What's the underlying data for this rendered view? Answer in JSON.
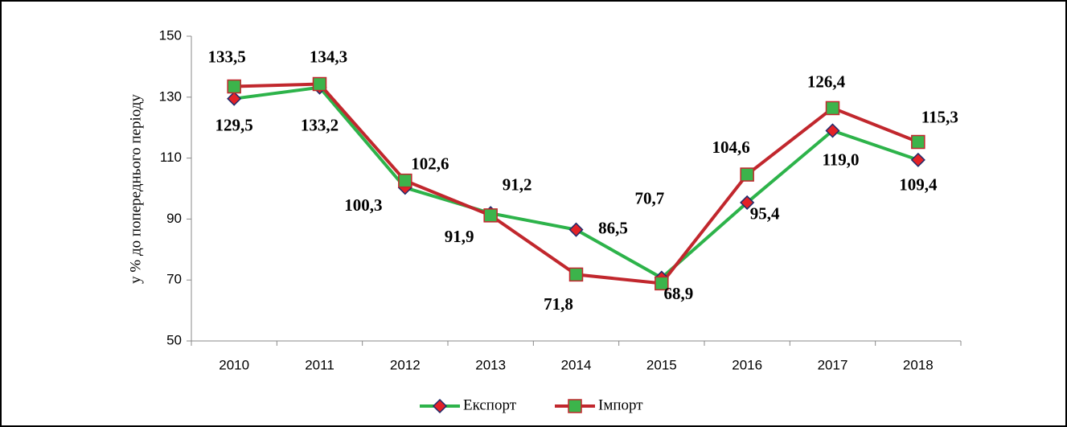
{
  "chart_data": {
    "type": "line",
    "y_label": "у % до попереднього періоду",
    "categories": [
      "2010",
      "2011",
      "2012",
      "2013",
      "2014",
      "2015",
      "2016",
      "2017",
      "2018"
    ],
    "series": [
      {
        "name": "Експорт",
        "color": "#2db34a",
        "marker_color": "#e32227",
        "values": [
          129.5,
          133.2,
          100.3,
          91.9,
          86.5,
          70.7,
          95.4,
          119.0,
          109.4
        ],
        "value_labels": [
          "129,5",
          "133,2",
          "100,3",
          "91,9",
          "86,5",
          "70,7",
          "95,4",
          "119,0",
          "109,4"
        ]
      },
      {
        "name": "Імпорт",
        "color": "#c1272d",
        "marker_color": "#3cb44b",
        "values": [
          133.5,
          134.3,
          102.6,
          91.2,
          71.8,
          68.9,
          104.6,
          126.4,
          115.3
        ],
        "value_labels": [
          "133,5",
          "134,3",
          "102,6",
          "91,2",
          "71,8",
          "68,9",
          "104,6",
          "126,4",
          "115,3"
        ]
      }
    ],
    "ylim": [
      50,
      150
    ],
    "yticks": [
      50,
      70,
      90,
      110,
      130,
      150
    ],
    "legend": "bottom"
  }
}
